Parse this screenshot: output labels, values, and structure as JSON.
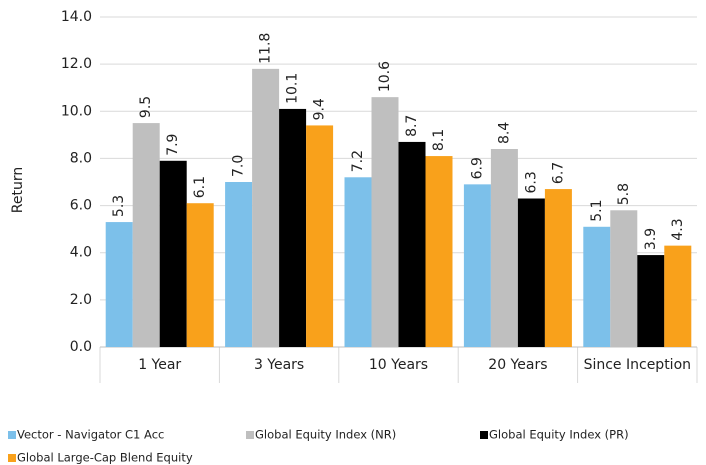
{
  "chart_data": {
    "type": "bar",
    "y_label": "Return",
    "categories": [
      "1 Year",
      "3 Years",
      "10 Years",
      "20 Years",
      "Since Inception"
    ],
    "series": [
      {
        "name": "Vector - Navigator C1 Acc",
        "color": "#7cc0ea",
        "values": [
          5.3,
          7.0,
          7.2,
          6.9,
          5.1
        ],
        "value_labels": [
          "5.3",
          "7.0",
          "7.2",
          "6.9",
          "5.1"
        ]
      },
      {
        "name": "Global Equity Index (NR)",
        "color": "#bfbfbf",
        "values": [
          9.5,
          11.8,
          10.6,
          8.4,
          5.8
        ],
        "value_labels": [
          "9.5",
          "11.8",
          "10.6",
          "8.4",
          "5.8"
        ]
      },
      {
        "name": "Global Equity Index (PR)",
        "color": "#000000",
        "values": [
          7.9,
          10.1,
          8.7,
          6.3,
          3.9
        ],
        "value_labels": [
          "7.9",
          "10.1",
          "8.7",
          "6.3",
          "3.9"
        ]
      },
      {
        "name": "Global Large-Cap Blend Equity",
        "color": "#f9a11b",
        "values": [
          6.1,
          9.4,
          8.1,
          6.7,
          4.3
        ],
        "value_labels": [
          "6.1",
          "9.4",
          "8.1",
          "6.7",
          "4.3"
        ]
      }
    ],
    "ylim": [
      0,
      14
    ],
    "yticks": [
      {
        "value": 0,
        "label": "0.0"
      },
      {
        "value": 2,
        "label": "2.0"
      },
      {
        "value": 4,
        "label": "4.0"
      },
      {
        "value": 6,
        "label": "6.0"
      },
      {
        "value": 8,
        "label": "8.0"
      },
      {
        "value": 10,
        "label": "10.0"
      },
      {
        "value": 12,
        "label": "12.0"
      },
      {
        "value": 14,
        "label": "14.0"
      }
    ],
    "grid": true
  }
}
